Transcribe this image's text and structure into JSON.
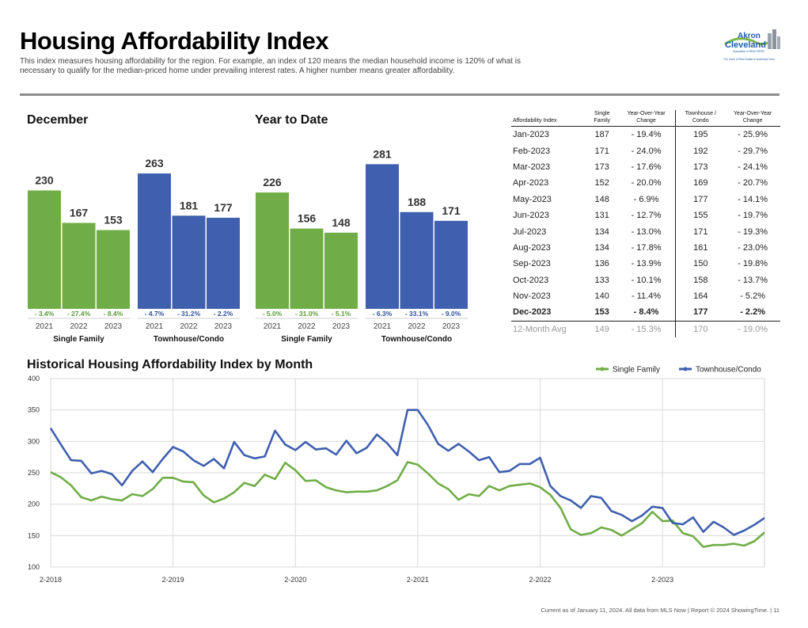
{
  "page": {
    "title": "Housing Affordability Index",
    "subtitle": "This index measures housing affordability for the region. For example, an index of 120 means the median household income is 120% of what is necessary to qualify for the median-priced home under prevailing interest rates. A higher number means greater affordability.",
    "footer": "Current as of January 11, 2024. All data from MLS Now | Report © 2024 ShowingTime.  |  11"
  },
  "logo": {
    "line1": "Akron",
    "line2": "Cleveland",
    "line3": "Association of REALTORS®",
    "tagline": "The Voice of Real Estate in Northeast Ohio",
    "colors": {
      "green": "#7ab648",
      "blue": "#1f5fa8"
    }
  },
  "colors": {
    "single_family": "#70ad47",
    "townhouse": "#3f5faf",
    "pct_green": "#5a9a35",
    "pct_blue": "#2f4f9f"
  },
  "chart_data": [
    {
      "type": "bar",
      "title": "December",
      "groups": [
        {
          "name": "Single Family",
          "categories": [
            "2021",
            "2022",
            "2023"
          ],
          "values": [
            230,
            167,
            153
          ],
          "changes": [
            "- 3.4%",
            "- 27.4%",
            "- 8.4%"
          ]
        },
        {
          "name": "Townhouse/Condo",
          "categories": [
            "2021",
            "2022",
            "2023"
          ],
          "values": [
            263,
            181,
            177
          ],
          "changes": [
            "- 4.7%",
            "- 31.2%",
            "- 2.2%"
          ]
        }
      ],
      "ylim": [
        0,
        300
      ]
    },
    {
      "type": "bar",
      "title": "Year to Date",
      "groups": [
        {
          "name": "Single Family",
          "categories": [
            "2021",
            "2022",
            "2023"
          ],
          "values": [
            226,
            156,
            148
          ],
          "changes": [
            "- 5.0%",
            "- 31.0%",
            "- 5.1%"
          ]
        },
        {
          "name": "Townhouse/Condo",
          "categories": [
            "2021",
            "2022",
            "2023"
          ],
          "values": [
            281,
            188,
            171
          ],
          "changes": [
            "- 6.3%",
            "- 33.1%",
            "- 9.0%"
          ]
        }
      ],
      "ylim": [
        0,
        300
      ]
    },
    {
      "type": "table",
      "columns": [
        "Affordability Index",
        "Single Family",
        "Year-Over-Year Change",
        "Townhouse / Condo",
        "Year-Over-Year Change"
      ],
      "rows": [
        [
          "Jan-2023",
          "187",
          "- 19.4%",
          "195",
          "- 25.9%"
        ],
        [
          "Feb-2023",
          "171",
          "- 24.0%",
          "192",
          "- 29.7%"
        ],
        [
          "Mar-2023",
          "173",
          "- 17.6%",
          "173",
          "- 24.1%"
        ],
        [
          "Apr-2023",
          "152",
          "- 20.0%",
          "169",
          "- 20.7%"
        ],
        [
          "May-2023",
          "148",
          "- 6.9%",
          "177",
          "- 14.1%"
        ],
        [
          "Jun-2023",
          "131",
          "- 12.7%",
          "155",
          "- 19.7%"
        ],
        [
          "Jul-2023",
          "134",
          "- 13.0%",
          "171",
          "- 19.3%"
        ],
        [
          "Aug-2023",
          "134",
          "- 17.8%",
          "161",
          "- 23.0%"
        ],
        [
          "Sep-2023",
          "136",
          "- 13.9%",
          "150",
          "- 19.8%"
        ],
        [
          "Oct-2023",
          "133",
          "- 10.1%",
          "158",
          "- 13.7%"
        ],
        [
          "Nov-2023",
          "140",
          "- 11.4%",
          "164",
          "- 5.2%"
        ],
        [
          "Dec-2023",
          "153",
          "- 8.4%",
          "177",
          "- 2.2%"
        ]
      ],
      "summary_row": [
        "12-Month Avg",
        "149",
        "- 15.3%",
        "170",
        "- 19.0%"
      ]
    },
    {
      "type": "line",
      "title": "Historical Housing Affordability Index by Month",
      "x_start": "2-2018",
      "x_end": "12-2023",
      "xticks": [
        "2-2018",
        "2-2019",
        "2-2020",
        "2-2021",
        "2-2022",
        "2-2023"
      ],
      "ylim": [
        100,
        400
      ],
      "yticks": [
        100,
        150,
        200,
        250,
        300,
        350,
        400
      ],
      "legend": "top-right",
      "grid": true,
      "series": [
        {
          "name": "Single Family",
          "color": "#70ad47",
          "values": [
            251,
            243,
            230,
            211,
            206,
            212,
            208,
            206,
            216,
            213,
            224,
            242,
            242,
            236,
            235,
            214,
            203,
            209,
            219,
            234,
            229,
            247,
            240,
            266,
            254,
            237,
            238,
            227,
            222,
            219,
            220,
            220,
            222,
            229,
            238,
            267,
            263,
            249,
            233,
            224,
            207,
            216,
            213,
            229,
            222,
            229,
            231,
            233,
            227,
            215,
            194,
            160,
            151,
            154,
            163,
            159,
            150,
            160,
            170,
            188,
            173,
            174,
            154,
            149,
            132,
            135,
            135,
            137,
            134,
            141,
            155
          ]
        },
        {
          "name": "Townhouse/Condo",
          "color": "#3f5faf",
          "values": [
            321,
            295,
            270,
            269,
            249,
            253,
            248,
            230,
            253,
            268,
            251,
            272,
            291,
            284,
            270,
            261,
            272,
            257,
            299,
            278,
            273,
            276,
            317,
            295,
            286,
            299,
            287,
            289,
            279,
            301,
            281,
            290,
            311,
            297,
            278,
            350,
            350,
            326,
            296,
            285,
            296,
            284,
            270,
            275,
            251,
            253,
            264,
            264,
            274,
            229,
            213,
            206,
            194,
            213,
            210,
            189,
            183,
            173,
            182,
            196,
            194,
            170,
            168,
            179,
            156,
            172,
            163,
            151,
            158,
            167,
            178
          ]
        }
      ]
    }
  ],
  "groups_labels": {
    "single_family": "Single Family",
    "townhouse": "Townhouse/Condo"
  }
}
